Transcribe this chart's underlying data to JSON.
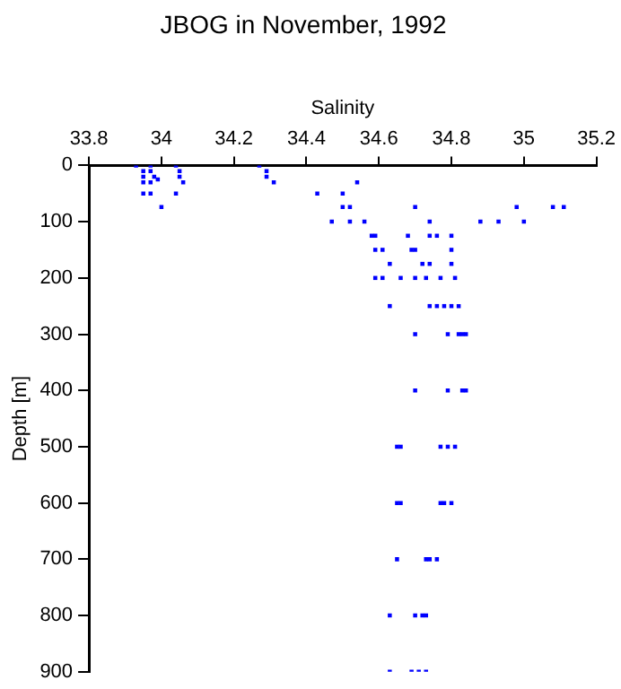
{
  "chart_data": {
    "type": "scatter",
    "title": "JBOG in November, 1992",
    "xlabel": "Salinity",
    "ylabel": "Depth [m]",
    "xlim": [
      33.8,
      35.2
    ],
    "xticks": [
      33.8,
      34,
      34.2,
      34.4,
      34.6,
      34.8,
      35,
      35.2
    ],
    "ylim": [
      900,
      0
    ],
    "yticks": [
      0,
      100,
      200,
      300,
      400,
      500,
      600,
      700,
      800,
      900
    ],
    "grid": false,
    "legend": false,
    "marker": "square",
    "series": [
      {
        "color": "#0000ff",
        "x": [
          33.93,
          33.97,
          34.04,
          34.27,
          33.95,
          33.97,
          33.95,
          33.98,
          33.95,
          33.97,
          33.99,
          34.05,
          34.05,
          34.06,
          34.29,
          34.29,
          34.31,
          33.95,
          33.97,
          34.04,
          34.0,
          34.43,
          34.5,
          34.54,
          34.5,
          34.52,
          34.7,
          34.98,
          35.08,
          35.11,
          34.47,
          34.52,
          34.56,
          34.74,
          34.88,
          34.93,
          35.0,
          34.58,
          34.59,
          34.68,
          34.74,
          34.76,
          34.8,
          34.59,
          34.61,
          34.69,
          34.7,
          34.8,
          34.63,
          34.72,
          34.74,
          34.8,
          34.59,
          34.61,
          34.66,
          34.7,
          34.73,
          34.77,
          34.81,
          34.63,
          34.74,
          34.76,
          34.78,
          34.8,
          34.82,
          34.7,
          34.79,
          34.82,
          34.83,
          34.84,
          34.7,
          34.79,
          34.83,
          34.84,
          34.65,
          34.66,
          34.77,
          34.79,
          34.81,
          34.65,
          34.66,
          34.77,
          34.78,
          34.8,
          34.65,
          34.73,
          34.74,
          34.76,
          34.63,
          34.7,
          34.72,
          34.73,
          34.63,
          34.69,
          34.71,
          34.73
        ],
        "values": [
          0,
          0,
          0,
          0,
          10,
          10,
          20,
          20,
          30,
          30,
          25,
          10,
          20,
          30,
          10,
          20,
          30,
          50,
          50,
          50,
          74,
          50,
          50,
          30,
          74,
          74,
          74,
          74,
          74,
          74,
          100,
          100,
          100,
          100,
          100,
          100,
          100,
          125,
          125,
          125,
          125,
          125,
          125,
          150,
          150,
          150,
          150,
          150,
          175,
          175,
          175,
          175,
          200,
          200,
          200,
          200,
          200,
          200,
          200,
          250,
          250,
          250,
          250,
          250,
          250,
          300,
          300,
          300,
          300,
          300,
          400,
          400,
          400,
          400,
          500,
          500,
          500,
          500,
          500,
          600,
          600,
          600,
          600,
          600,
          700,
          700,
          700,
          700,
          800,
          800,
          800,
          800,
          900,
          900,
          900,
          900
        ]
      }
    ]
  }
}
